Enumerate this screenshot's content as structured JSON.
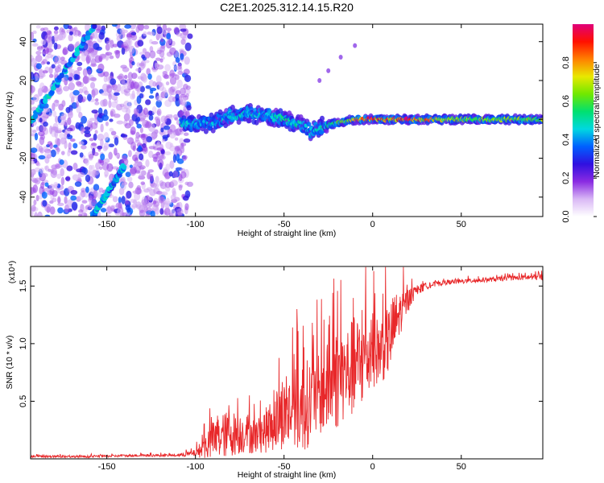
{
  "title": "C2E1.2025.312.14.15.R20",
  "colors": {
    "trace": "#e8282a",
    "scatter_faint": "#c9a7ef",
    "scatter_strong": "#6a12d8",
    "axis": "#000000"
  },
  "colorbar": {
    "label": "Normalized spectral amplitude",
    "ticks": [
      "0.0",
      "0.2",
      "0.4",
      "0.6",
      "0.8"
    ],
    "tick_values": [
      0.0,
      0.2,
      0.4,
      0.6,
      0.8
    ],
    "range": [
      0,
      1
    ],
    "stops": [
      "#ffffff",
      "#d9b8f5",
      "#8a2be2",
      "#3010e0",
      "#0060ff",
      "#00d8e0",
      "#00e070",
      "#70e800",
      "#e8e800",
      "#ff8000",
      "#ff1000",
      "#e0007a"
    ]
  },
  "chart_data": [
    {
      "type": "heatmap",
      "title": "C2E1.2025.312.14.15.R20",
      "xlabel": "Height of straight line (km)",
      "ylabel": "Frequency (Hz)",
      "xlim": [
        -193,
        96
      ],
      "ylim": [
        -50,
        49
      ],
      "xticks": [
        -150,
        -100,
        -50,
        0,
        50
      ],
      "xtick_labels": [
        "-150",
        "-100",
        "-50",
        "0",
        "50"
      ],
      "yticks": [
        -40,
        -20,
        0,
        20,
        40
      ],
      "ytick_labels": [
        "-40",
        "-20",
        "0",
        "20",
        "40"
      ],
      "features": {
        "noise_region_km": [
          -193,
          -103
        ],
        "main_ridge": {
          "x": [
            -108,
            -100,
            -90,
            -80,
            -70,
            -60,
            -50,
            -40,
            -35,
            -30,
            -20,
            -10,
            0,
            10,
            20,
            40,
            60,
            96
          ],
          "y": [
            -2,
            -3,
            -2,
            2,
            3,
            2,
            0,
            -3,
            -6,
            -4,
            -2,
            0,
            0,
            0,
            0,
            0,
            0,
            0
          ],
          "amplitude": [
            0.5,
            0.45,
            0.45,
            0.5,
            0.5,
            0.45,
            0.55,
            0.5,
            0.45,
            0.5,
            0.6,
            0.8,
            0.98,
            0.85,
            0.98,
            0.75,
            0.7,
            0.7
          ]
        },
        "diagonal_band_upper": {
          "x_start": -193,
          "y_start": -2,
          "x_end": -157,
          "y_end": 48
        },
        "diagonal_band_lower": {
          "x_start": -158,
          "y_start": -50,
          "x_end": -140,
          "y_end": -24
        },
        "faint_branch": {
          "x": [
            -30,
            -25,
            -18,
            -10
          ],
          "y": [
            20,
            25,
            32,
            38
          ]
        }
      }
    },
    {
      "type": "line",
      "xlabel": "Height of straight line (km)",
      "ylabel": "SNR (10 * v/v)",
      "scale_label": "(x10⁴)",
      "xlim": [
        -193,
        96
      ],
      "ylim": [
        0,
        1.67
      ],
      "xticks": [
        -150,
        -100,
        -50,
        0,
        50
      ],
      "xtick_labels": [
        "-150",
        "-100",
        "-50",
        "0",
        "50"
      ],
      "yticks": [
        0.5,
        1.0,
        1.5
      ],
      "ytick_labels": [
        "0.5",
        "1.0",
        "1.5"
      ],
      "series": [
        {
          "name": "SNR",
          "x": [
            -193,
            -160,
            -130,
            -110,
            -100,
            -95,
            -90,
            -85,
            -80,
            -75,
            -70,
            -65,
            -60,
            -55,
            -50,
            -45,
            -40,
            -35,
            -30,
            -25,
            -20,
            -15,
            -10,
            -5,
            0,
            5,
            10,
            12,
            15,
            20,
            25,
            30,
            40,
            50,
            60,
            70,
            80,
            96
          ],
          "y": [
            0.02,
            0.02,
            0.03,
            0.03,
            0.05,
            0.1,
            0.15,
            0.2,
            0.22,
            0.22,
            0.22,
            0.2,
            0.25,
            0.32,
            0.38,
            0.42,
            0.45,
            0.5,
            0.55,
            0.62,
            0.7,
            0.75,
            0.8,
            0.85,
            0.92,
            0.95,
            1.05,
            1.15,
            1.25,
            1.38,
            1.46,
            1.5,
            1.53,
            1.54,
            1.55,
            1.56,
            1.57,
            1.58
          ],
          "noise_amp": [
            0.01,
            0.01,
            0.01,
            0.01,
            0.03,
            0.1,
            0.18,
            0.2,
            0.2,
            0.18,
            0.18,
            0.15,
            0.2,
            0.25,
            0.3,
            0.35,
            0.4,
            0.38,
            0.35,
            0.4,
            0.45,
            0.4,
            0.45,
            0.4,
            0.3,
            0.3,
            0.3,
            0.3,
            0.2,
            0.1,
            0.05,
            0.03,
            0.02,
            0.02,
            0.02,
            0.02,
            0.02,
            0.03
          ]
        }
      ]
    }
  ]
}
